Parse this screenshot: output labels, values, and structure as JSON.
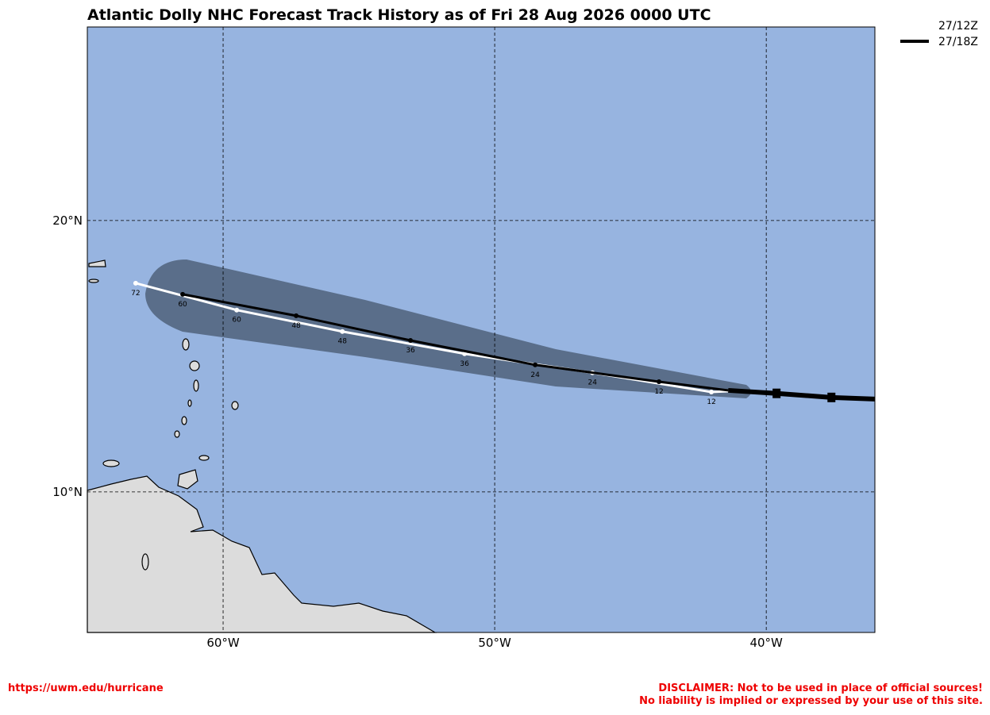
{
  "chart_data": {
    "type": "track",
    "title": "Atlantic Dolly NHC Forecast Track History as of Fri 28 Aug 2026 0000 UTC",
    "xlim": [
      -65,
      -36
    ],
    "ylim": [
      4.82,
      27.13
    ],
    "xticks": [
      {
        "value": -60,
        "label": "60°W"
      },
      {
        "value": -50,
        "label": "50°W"
      },
      {
        "value": -40,
        "label": "40°W"
      }
    ],
    "yticks": [
      {
        "value": 10,
        "label": "10°N"
      },
      {
        "value": 20,
        "label": "20°N"
      }
    ],
    "grid": true,
    "legend": "top-right",
    "series": [
      {
        "name": "27/12Z",
        "color": "#ffffff",
        "x": [
          -41.4,
          -42.02,
          -46.4,
          -51.11,
          -55.61,
          -59.5,
          -63.22
        ],
        "values": [
          13.71,
          13.68,
          14.39,
          15.09,
          15.91,
          16.7,
          17.69
        ],
        "point_labels": [
          null,
          "12",
          "24",
          "36",
          "48",
          "60",
          "72"
        ]
      },
      {
        "name": "27/18Z",
        "color": "#000000",
        "x": [
          -36.0,
          -37.6,
          -39.62,
          -41.4,
          -43.95,
          -48.51,
          -53.1,
          -57.31,
          -61.49
        ],
        "values": [
          13.42,
          13.48,
          13.63,
          13.74,
          14.06,
          14.68,
          15.58,
          16.49,
          17.28
        ],
        "point_labels": [
          null,
          null,
          null,
          null,
          "12",
          "24",
          "36",
          "48",
          "60"
        ]
      }
    ]
  },
  "footer": {
    "url": "https://uwm.edu/hurricane",
    "disclaimer": [
      "DISCLAIMER: Not to be used in place of official sources!",
      "No liability is implied or expressed by your use of this site."
    ]
  }
}
